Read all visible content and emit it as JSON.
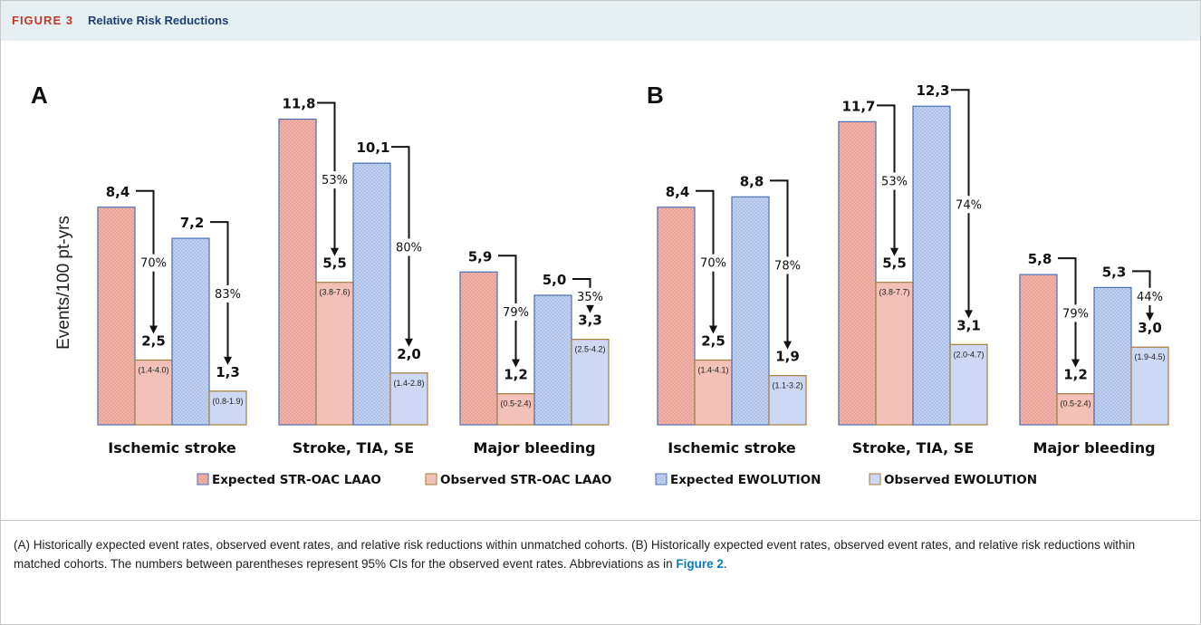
{
  "header": {
    "figure_label": "FIGURE 3",
    "title": "Relative Risk Reductions"
  },
  "chart_data": {
    "type": "bar",
    "ylabel": "Events/100 pt-yrs",
    "ylim": [
      0,
      13.5
    ],
    "legend": [
      "Expected STR-OAC LAAO",
      "Observed STR-OAC LAAO",
      "Expected EWOLUTION",
      "Observed EWOLUTION"
    ],
    "legend_position": "bottom",
    "colors": {
      "expected_str": "#eaa49d",
      "observed_str": "#f3c1b8",
      "expected_ewo": "#b8c8ee",
      "observed_ewo": "#cdd8f4",
      "str_border": "#4a6fb5",
      "obs_border": "#a57d3a"
    },
    "panels": [
      {
        "label": "A",
        "categories": [
          "Ischemic stroke",
          "Stroke, TIA, SE",
          "Major bleeding"
        ],
        "series": [
          {
            "name": "Expected STR-OAC LAAO",
            "values": [
              8.4,
              11.8,
              5.9
            ],
            "labels": [
              "8,4",
              "11,8",
              "5,9"
            ]
          },
          {
            "name": "Observed STR-OAC LAAO",
            "values": [
              2.5,
              5.5,
              1.2
            ],
            "labels": [
              "2,5",
              "5,5",
              "1,2"
            ],
            "ci": [
              "(1.4-4.0)",
              "(3.8-7.6)",
              "(0.5-2.4)"
            ]
          },
          {
            "name": "Expected EWOLUTION",
            "values": [
              7.2,
              10.1,
              5.0
            ],
            "labels": [
              "7,2",
              "10,1",
              "5,0"
            ]
          },
          {
            "name": "Observed EWOLUTION",
            "values": [
              1.3,
              2.0,
              3.3
            ],
            "labels": [
              "1,3",
              "2,0",
              "3,3"
            ],
            "ci": [
              "(0.8-1.9)",
              "(1.4-2.8)",
              "(2.5-4.2)"
            ]
          }
        ],
        "reductions_str": [
          "70%",
          "53%",
          "79%"
        ],
        "reductions_ewo": [
          "83%",
          "80%",
          "35%"
        ]
      },
      {
        "label": "B",
        "categories": [
          "Ischemic stroke",
          "Stroke, TIA, SE",
          "Major bleeding"
        ],
        "series": [
          {
            "name": "Expected STR-OAC LAAO",
            "values": [
              8.4,
              11.7,
              5.8
            ],
            "labels": [
              "8,4",
              "11,7",
              "5,8"
            ]
          },
          {
            "name": "Observed STR-OAC LAAO",
            "values": [
              2.5,
              5.5,
              1.2
            ],
            "labels": [
              "2,5",
              "5,5",
              "1,2"
            ],
            "ci": [
              "(1.4-4.1)",
              "(3.8-7.7)",
              "(0.5-2.4)"
            ]
          },
          {
            "name": "Expected EWOLUTION",
            "values": [
              8.8,
              12.3,
              5.3
            ],
            "labels": [
              "8,8",
              "12,3",
              "5,3"
            ]
          },
          {
            "name": "Observed EWOLUTION",
            "values": [
              1.9,
              3.1,
              3.0
            ],
            "labels": [
              "1,9",
              "3,1",
              "3,0"
            ],
            "ci": [
              "(1.1-3.2)",
              "(2.0-4.7)",
              "(1.9-4.5)"
            ]
          }
        ],
        "reductions_str": [
          "70%",
          "53%",
          "79%"
        ],
        "reductions_ewo": [
          "78%",
          "74%",
          "44%"
        ]
      }
    ]
  },
  "caption": {
    "text": "(A) Historically expected event rates, observed event rates, and relative risk reductions within unmatched cohorts. (B) Historically expected event rates, observed event rates, and relative risk reductions within matched cohorts. The numbers between parentheses represent 95% CIs for the observed event rates. Abbreviations as in ",
    "link": "Figure 2",
    "end": "."
  }
}
